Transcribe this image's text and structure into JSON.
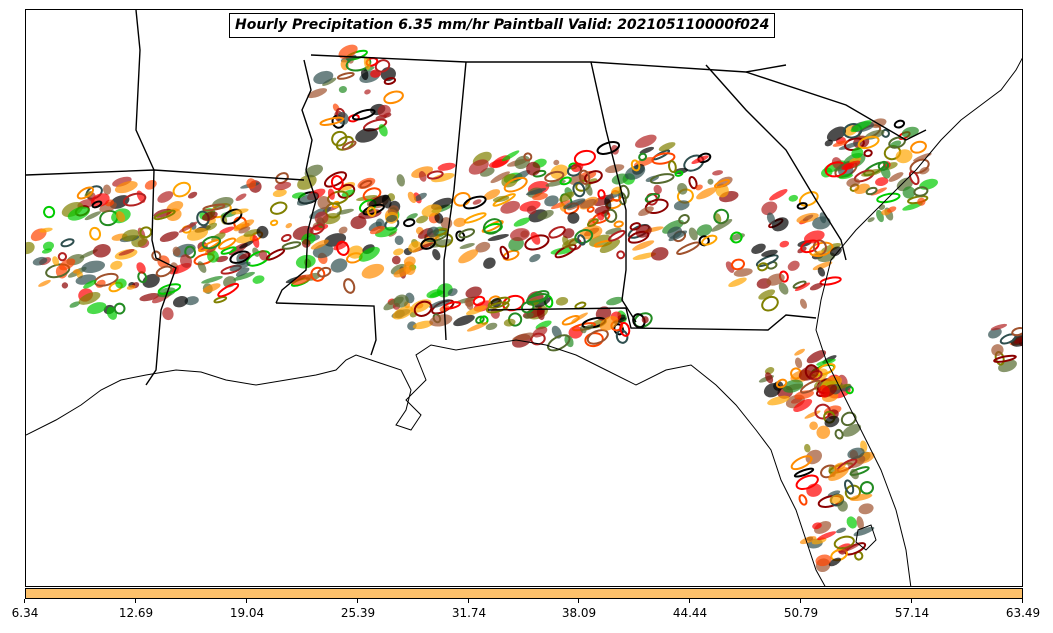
{
  "title": "Hourly Precipitation 6.35 mm/hr Paintball Valid: 202105110000f024",
  "colorbar": {
    "color": "#fdc16b",
    "tick_labels": [
      "6.34",
      "12.69",
      "19.04",
      "25.39",
      "31.74",
      "38.09",
      "44.44",
      "50.79",
      "57.14",
      "63.49"
    ]
  },
  "legend_colors": {
    "member_colors": [
      "#ff0000",
      "#ff8c00",
      "#00cc00",
      "#8b0000",
      "#556b2f",
      "#808000",
      "#000000",
      "#ff4500",
      "#228b22",
      "#a0522d",
      "#ffa500",
      "#b22222",
      "#2f4f4f"
    ]
  },
  "map": {
    "region": "Southeastern United States",
    "features": [
      "state-borders",
      "coastline",
      "precipitation-paintball"
    ]
  }
}
